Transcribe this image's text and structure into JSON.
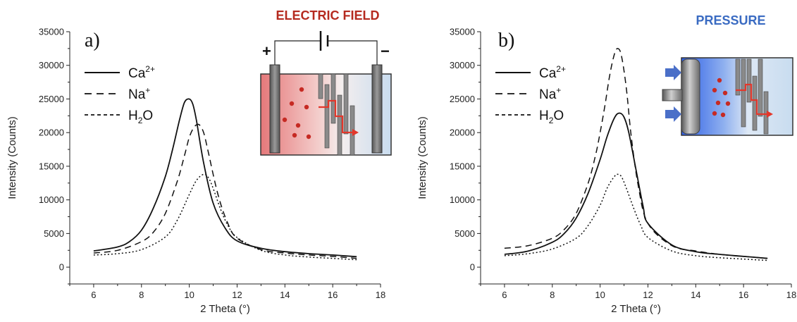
{
  "chart_data": [
    {
      "type": "line",
      "panel_label": "a)",
      "inset_title": "ELECTRIC FIELD",
      "inset_title_color": "#b52a1f",
      "xlabel": "2 Theta (°)",
      "ylabel": "Intensity (Counts)",
      "xlim": [
        5,
        18
      ],
      "ylim": [
        -2500,
        35000
      ],
      "xticks": [
        "6",
        "8",
        "10",
        "12",
        "14",
        "16",
        "18"
      ],
      "yticks": [
        "0",
        "5000",
        "10000",
        "15000",
        "20000",
        "25000",
        "30000",
        "35000"
      ],
      "grid": false,
      "legend_position": "top-left",
      "electrode_plus": "+",
      "electrode_minus": "−",
      "series": [
        {
          "name": "Ca2+",
          "dash": "solid",
          "x": [
            6,
            7,
            7.5,
            8,
            8.5,
            9,
            9.3,
            9.6,
            9.8,
            10,
            10.15,
            10.3,
            10.6,
            11,
            11.5,
            12,
            13,
            14,
            15,
            16,
            17
          ],
          "y": [
            2400,
            3000,
            3800,
            5500,
            8800,
            13500,
            17500,
            22000,
            24500,
            25000,
            24200,
            21800,
            15500,
            9500,
            5800,
            3900,
            2800,
            2300,
            2000,
            1800,
            1550
          ]
        },
        {
          "name": "Na+",
          "dash": "dashed",
          "x": [
            6,
            7,
            8,
            8.5,
            9,
            9.5,
            9.8,
            10,
            10.2,
            10.4,
            10.6,
            10.8,
            11.2,
            11.6,
            12,
            13,
            14,
            15,
            16,
            17
          ],
          "y": [
            2100,
            2500,
            3800,
            5200,
            8000,
            12800,
            16600,
            19300,
            20800,
            21200,
            20000,
            17000,
            10800,
            6600,
            4300,
            2600,
            2100,
            1800,
            1600,
            1300
          ]
        },
        {
          "name": "H2O",
          "dash": "dotted",
          "x": [
            6,
            7,
            8,
            9,
            9.5,
            10,
            10.3,
            10.6,
            10.8,
            11,
            11.3,
            11.6,
            12,
            13,
            14,
            15,
            16,
            17
          ],
          "y": [
            1800,
            2000,
            2600,
            4500,
            7000,
            10800,
            12900,
            13800,
            13300,
            11700,
            8700,
            6300,
            4400,
            2500,
            1800,
            1500,
            1300,
            1100
          ]
        }
      ]
    },
    {
      "type": "line",
      "panel_label": "b)",
      "inset_title": "PRESSURE",
      "inset_title_color": "#3a6bc2",
      "xlabel": "2 Theta (°)",
      "ylabel": "Intensity (Counts)",
      "xlim": [
        5,
        18
      ],
      "ylim": [
        -2500,
        35000
      ],
      "xticks": [
        "6",
        "8",
        "10",
        "12",
        "14",
        "16",
        "18"
      ],
      "yticks": [
        "0",
        "5000",
        "10000",
        "15000",
        "20000",
        "25000",
        "30000",
        "35000"
      ],
      "grid": false,
      "legend_position": "top-left",
      "series": [
        {
          "name": "Ca2+",
          "dash": "solid",
          "x": [
            6,
            7,
            8,
            8.5,
            9,
            9.5,
            10,
            10.3,
            10.6,
            10.8,
            11,
            11.2,
            11.5,
            11.8,
            12,
            13,
            14,
            15,
            16,
            17
          ],
          "y": [
            1900,
            2400,
            3700,
            5000,
            7300,
            11000,
            16000,
            19500,
            22200,
            22900,
            22300,
            20000,
            14500,
            9000,
            6500,
            3300,
            2300,
            1900,
            1600,
            1300
          ]
        },
        {
          "name": "Na+",
          "dash": "dashed",
          "x": [
            6,
            7,
            8,
            8.5,
            9,
            9.5,
            9.8,
            10,
            10.2,
            10.4,
            10.6,
            10.75,
            10.9,
            11.1,
            11.3,
            11.6,
            12,
            13,
            14,
            15,
            16,
            17
          ],
          "y": [
            2800,
            3200,
            4300,
            5600,
            8000,
            12500,
            16500,
            20000,
            24000,
            28500,
            31700,
            32500,
            31300,
            26500,
            19500,
            12000,
            6500,
            3200,
            2400,
            1900,
            1600,
            1300
          ]
        },
        {
          "name": "H2O",
          "dash": "dotted",
          "x": [
            6,
            7,
            8,
            9,
            9.5,
            10,
            10.3,
            10.6,
            10.75,
            10.9,
            11.1,
            11.4,
            11.7,
            12,
            13,
            14,
            15,
            16,
            17
          ],
          "y": [
            1700,
            2000,
            2700,
            4300,
            6200,
            9200,
            11800,
            13500,
            13800,
            13400,
            11700,
            8800,
            6200,
            4400,
            2400,
            1700,
            1400,
            1200,
            1000
          ]
        }
      ]
    }
  ],
  "legend_labels": [
    {
      "base": "Ca",
      "sup": "2+",
      "sub": ""
    },
    {
      "base": "Na",
      "sup": "+",
      "sub": ""
    },
    {
      "base": "H",
      "sup": "",
      "sub": "2",
      "tail": "O"
    }
  ]
}
